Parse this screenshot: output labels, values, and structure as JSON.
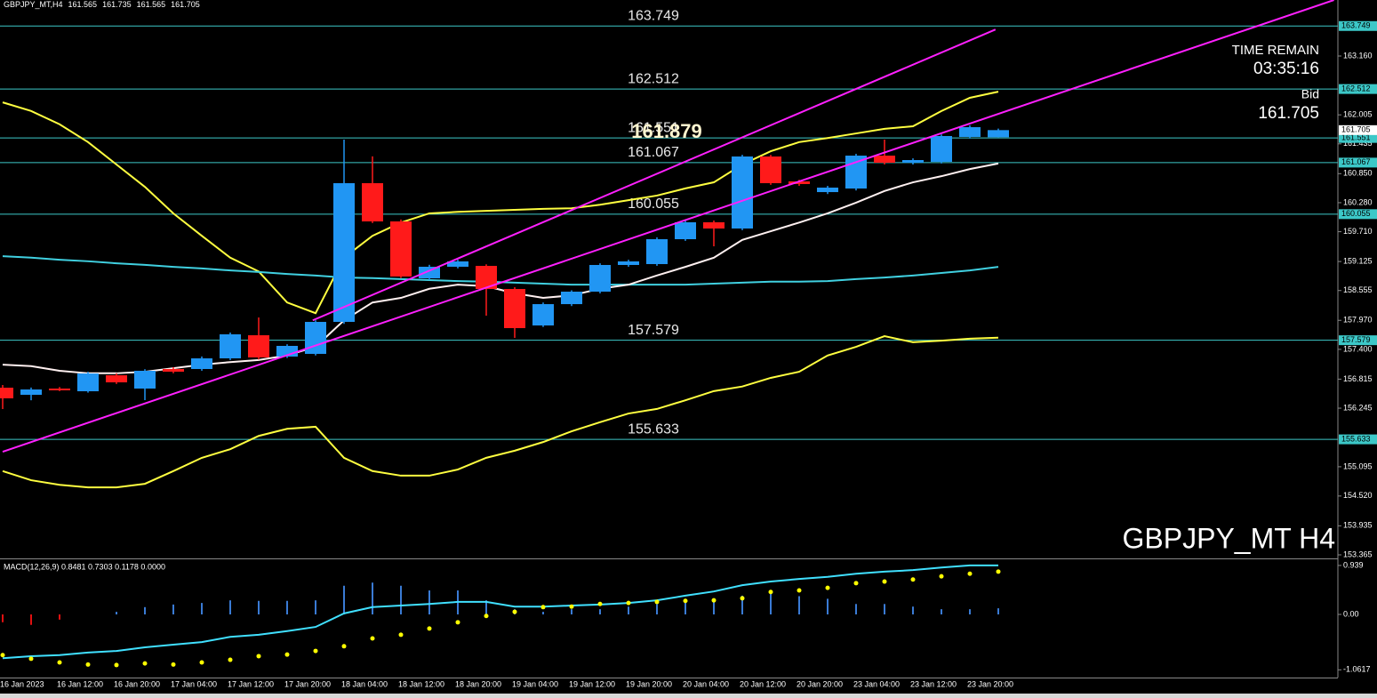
{
  "chart_data": [
    {
      "type": "candlestick",
      "title": "GBPJPY_MT,H4",
      "categories": [
        "16 Jan 2023",
        null,
        "16 Jan 12:00",
        null,
        "16 Jan 20:00",
        null,
        "17 Jan 04:00",
        null,
        "17 Jan 12:00",
        null,
        "17 Jan 20:00",
        null,
        "18 Jan 04:00",
        null,
        "18 Jan 12:00",
        null,
        "18 Jan 20:00",
        null,
        "19 Jan 04:00",
        null,
        "19 Jan 12:00",
        null,
        "19 Jan 20:00",
        null,
        "20 Jan 04:00",
        null,
        "20 Jan 12:00",
        null,
        "20 Jan 20:00",
        null,
        "23 Jan 04:00",
        null,
        "23 Jan 12:00",
        null,
        "23 Jan 20:00",
        null
      ],
      "open": [
        156.647,
        156.507,
        156.63,
        156.577,
        156.891,
        156.63,
        157.014,
        157.014,
        157.223,
        157.677,
        157.258,
        157.311,
        157.939,
        160.663,
        159.912,
        158.795,
        159.022,
        159.039,
        158.585,
        157.869,
        158.288,
        158.533,
        159.057,
        159.074,
        159.563,
        159.895,
        159.773,
        161.187,
        160.698,
        160.488,
        160.558,
        161.204,
        161.065,
        161.082,
        161.571,
        161.565
      ],
      "high": [
        156.7,
        156.65,
        156.66,
        156.96,
        156.93,
        157.01,
        157.05,
        157.26,
        157.73,
        158.026,
        157.5,
        157.97,
        161.519,
        161.19,
        159.95,
        159.06,
        159.16,
        159.07,
        158.62,
        158.32,
        158.56,
        159.09,
        159.16,
        159.6,
        159.93,
        159.93,
        161.22,
        161.22,
        160.73,
        160.61,
        161.24,
        161.519,
        161.15,
        161.62,
        161.8,
        161.735
      ],
      "low": [
        156.228,
        156.4,
        156.58,
        156.55,
        156.72,
        156.403,
        156.93,
        156.98,
        157.19,
        157.2,
        157.23,
        157.28,
        157.9,
        159.88,
        158.8,
        158.76,
        158.99,
        158.061,
        157.625,
        157.84,
        158.25,
        158.5,
        159.02,
        159.04,
        159.53,
        159.423,
        159.74,
        160.63,
        160.61,
        160.45,
        160.52,
        161.03,
        161.03,
        161.05,
        161.54,
        161.565
      ],
      "close": [
        156.438,
        156.612,
        156.595,
        156.926,
        156.752,
        156.979,
        156.961,
        157.223,
        157.695,
        157.241,
        157.468,
        157.939,
        160.663,
        159.912,
        158.83,
        159.022,
        159.127,
        158.585,
        157.817,
        158.288,
        158.533,
        159.057,
        159.127,
        159.563,
        159.895,
        159.773,
        161.187,
        160.663,
        160.646,
        160.576,
        161.204,
        161.065,
        161.117,
        161.589,
        161.763,
        161.705
      ],
      "up_color": "#2196f3",
      "down_color": "#ff1a1a",
      "series": [
        {
          "color": "#ffff40",
          "values": [
            162.25,
            162.08,
            161.82,
            161.47,
            161.03,
            160.59,
            160.07,
            159.63,
            159.2,
            158.93,
            158.32,
            158.11,
            159.2,
            159.63,
            159.89,
            160.07,
            160.1,
            160.12,
            160.14,
            160.16,
            160.17,
            160.24,
            160.33,
            160.42,
            160.56,
            160.68,
            161.03,
            161.29,
            161.47,
            161.55,
            161.64,
            161.73,
            161.78,
            162.08,
            162.34,
            162.46
          ]
        },
        {
          "color": "#ffff40",
          "values": [
            155.01,
            154.83,
            154.74,
            154.69,
            154.69,
            154.76,
            155.01,
            155.27,
            155.44,
            155.7,
            155.84,
            155.88,
            155.27,
            155.01,
            154.92,
            154.92,
            155.04,
            155.27,
            155.41,
            155.58,
            155.79,
            155.97,
            156.14,
            156.23,
            156.4,
            156.58,
            156.67,
            156.84,
            156.96,
            157.28,
            157.45,
            157.66,
            157.54,
            157.57,
            157.61,
            157.63
          ]
        },
        {
          "color": "#40d0e0",
          "values": [
            159.23,
            159.2,
            159.16,
            159.13,
            159.09,
            159.06,
            159.02,
            158.99,
            158.95,
            158.92,
            158.88,
            158.85,
            158.81,
            158.8,
            158.78,
            158.76,
            158.74,
            158.73,
            158.71,
            158.69,
            158.67,
            158.67,
            158.67,
            158.67,
            158.67,
            158.69,
            158.71,
            158.73,
            158.73,
            158.74,
            158.78,
            158.81,
            158.85,
            158.9,
            158.95,
            159.02
          ]
        },
        {
          "color": "#fff0f0",
          "values": [
            157.1,
            157.07,
            156.98,
            156.93,
            156.93,
            156.96,
            157.03,
            157.1,
            157.15,
            157.19,
            157.28,
            157.45,
            157.97,
            158.32,
            158.41,
            158.59,
            158.67,
            158.64,
            158.5,
            158.41,
            158.46,
            158.59,
            158.67,
            158.85,
            159.02,
            159.2,
            159.55,
            159.72,
            159.89,
            160.07,
            160.28,
            160.51,
            160.68,
            160.8,
            160.94,
            161.05
          ]
        }
      ],
      "trendlines": [
        {
          "color": "#ff20ff",
          "x": [
            0,
            46.8
          ],
          "y": [
            155.39,
            164.26
          ]
        },
        {
          "color": "#ff20ff",
          "x": [
            10.9,
            34.9
          ],
          "y": [
            157.97,
            163.68
          ]
        }
      ],
      "levels": [
        163.749,
        162.512,
        161.551,
        161.067,
        160.055,
        157.579,
        155.633
      ],
      "level_color": "#3cc8c8",
      "price_label": 161.879,
      "ylim": [
        153.295,
        164.26
      ],
      "yticks": [
        {
          "value": 163.16,
          "label": "163.160"
        },
        162.005,
        161.435,
        {
          "value": 160.85,
          "label": "160.850"
        },
        {
          "value": 160.28,
          "label": "160.280"
        },
        {
          "value": 159.71,
          "label": "159.710"
        },
        159.125,
        158.555,
        {
          "value": 157.97,
          "label": "157.970"
        },
        {
          "value": 157.4,
          "label": "157.400"
        },
        156.815,
        156.245,
        155.095,
        {
          "value": 154.52,
          "label": "154.520"
        },
        153.935,
        153.365
      ],
      "time_remain_label": "TIME REMAIN",
      "time_remain": "03:35:16",
      "bid_label": "Bid",
      "watermark": "GBPJPY_MT H4"
    },
    {
      "type": "macd",
      "title": "MACD(12,26,9) 0.8481 0.7303 0.1178 0.0000",
      "negative_color": "#e01010",
      "series": [
        {
          "type": "bar",
          "color": "#3a7bd5",
          "values": [
            -0.15,
            -0.2,
            -0.1,
            0.0,
            0.05,
            0.14,
            0.19,
            0.22,
            0.27,
            0.26,
            0.26,
            0.27,
            0.55,
            0.61,
            0.55,
            0.46,
            0.46,
            0.27,
            0.1,
            0.05,
            0.1,
            0.1,
            0.15,
            0.2,
            0.25,
            0.3,
            0.36,
            0.4,
            0.35,
            0.3,
            0.2,
            0.2,
            0.15,
            0.1,
            0.1,
            0.1178
          ]
        },
        {
          "type": "line",
          "color": "#40e0ff",
          "values": [
            -0.84,
            -0.8,
            -0.78,
            -0.73,
            -0.7,
            -0.63,
            -0.58,
            -0.53,
            -0.43,
            -0.39,
            -0.32,
            -0.24,
            0.02,
            0.14,
            0.17,
            0.2,
            0.24,
            0.24,
            0.15,
            0.15,
            0.17,
            0.19,
            0.22,
            0.27,
            0.36,
            0.44,
            0.56,
            0.63,
            0.68,
            0.72,
            0.78,
            0.82,
            0.85,
            0.9,
            0.94,
            0.94
          ]
        },
        {
          "type": "dots",
          "color": "#ffff00",
          "values": [
            -0.78,
            -0.85,
            -0.92,
            -0.96,
            -0.97,
            -0.94,
            -0.96,
            -0.92,
            -0.87,
            -0.8,
            -0.77,
            -0.7,
            -0.61,
            -0.46,
            -0.39,
            -0.27,
            -0.15,
            -0.03,
            0.05,
            0.14,
            0.15,
            0.2,
            0.22,
            0.24,
            0.26,
            0.27,
            0.31,
            0.43,
            0.46,
            0.51,
            0.6,
            0.63,
            0.67,
            0.73,
            0.78,
            0.82
          ]
        }
      ],
      "ylim": [
        -1.21,
        1.04
      ],
      "yticks": [
        0.939,
        {
          "value": 0,
          "label": "0.00"
        },
        -1.0617
      ]
    }
  ]
}
